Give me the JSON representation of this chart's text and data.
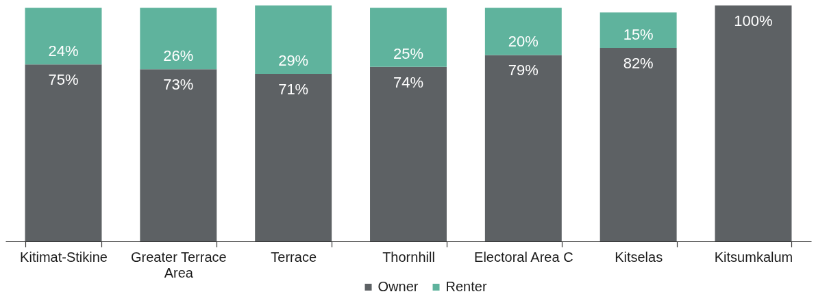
{
  "chart_data": {
    "type": "bar",
    "stacked": true,
    "categories": [
      "Kitimat-Stikine",
      "Greater Terrace Area",
      "Terrace",
      "Thornhill",
      "Electoral Area C",
      "Kitselas",
      "Kitsumkalum"
    ],
    "series": [
      {
        "name": "Owner",
        "color": "#5d6164",
        "values": [
          75,
          73,
          71,
          74,
          79,
          82,
          100
        ],
        "value_labels": [
          "75%",
          "73%",
          "71%",
          "74%",
          "79%",
          "82%",
          "100%"
        ]
      },
      {
        "name": "Renter",
        "color": "#5fb39d",
        "values": [
          24,
          26,
          29,
          25,
          20,
          15,
          null
        ],
        "value_labels": [
          "24%",
          "26%",
          "29%",
          "25%",
          "20%",
          "15%",
          null
        ]
      }
    ],
    "legend": "bottom",
    "tick_labels": "x"
  }
}
